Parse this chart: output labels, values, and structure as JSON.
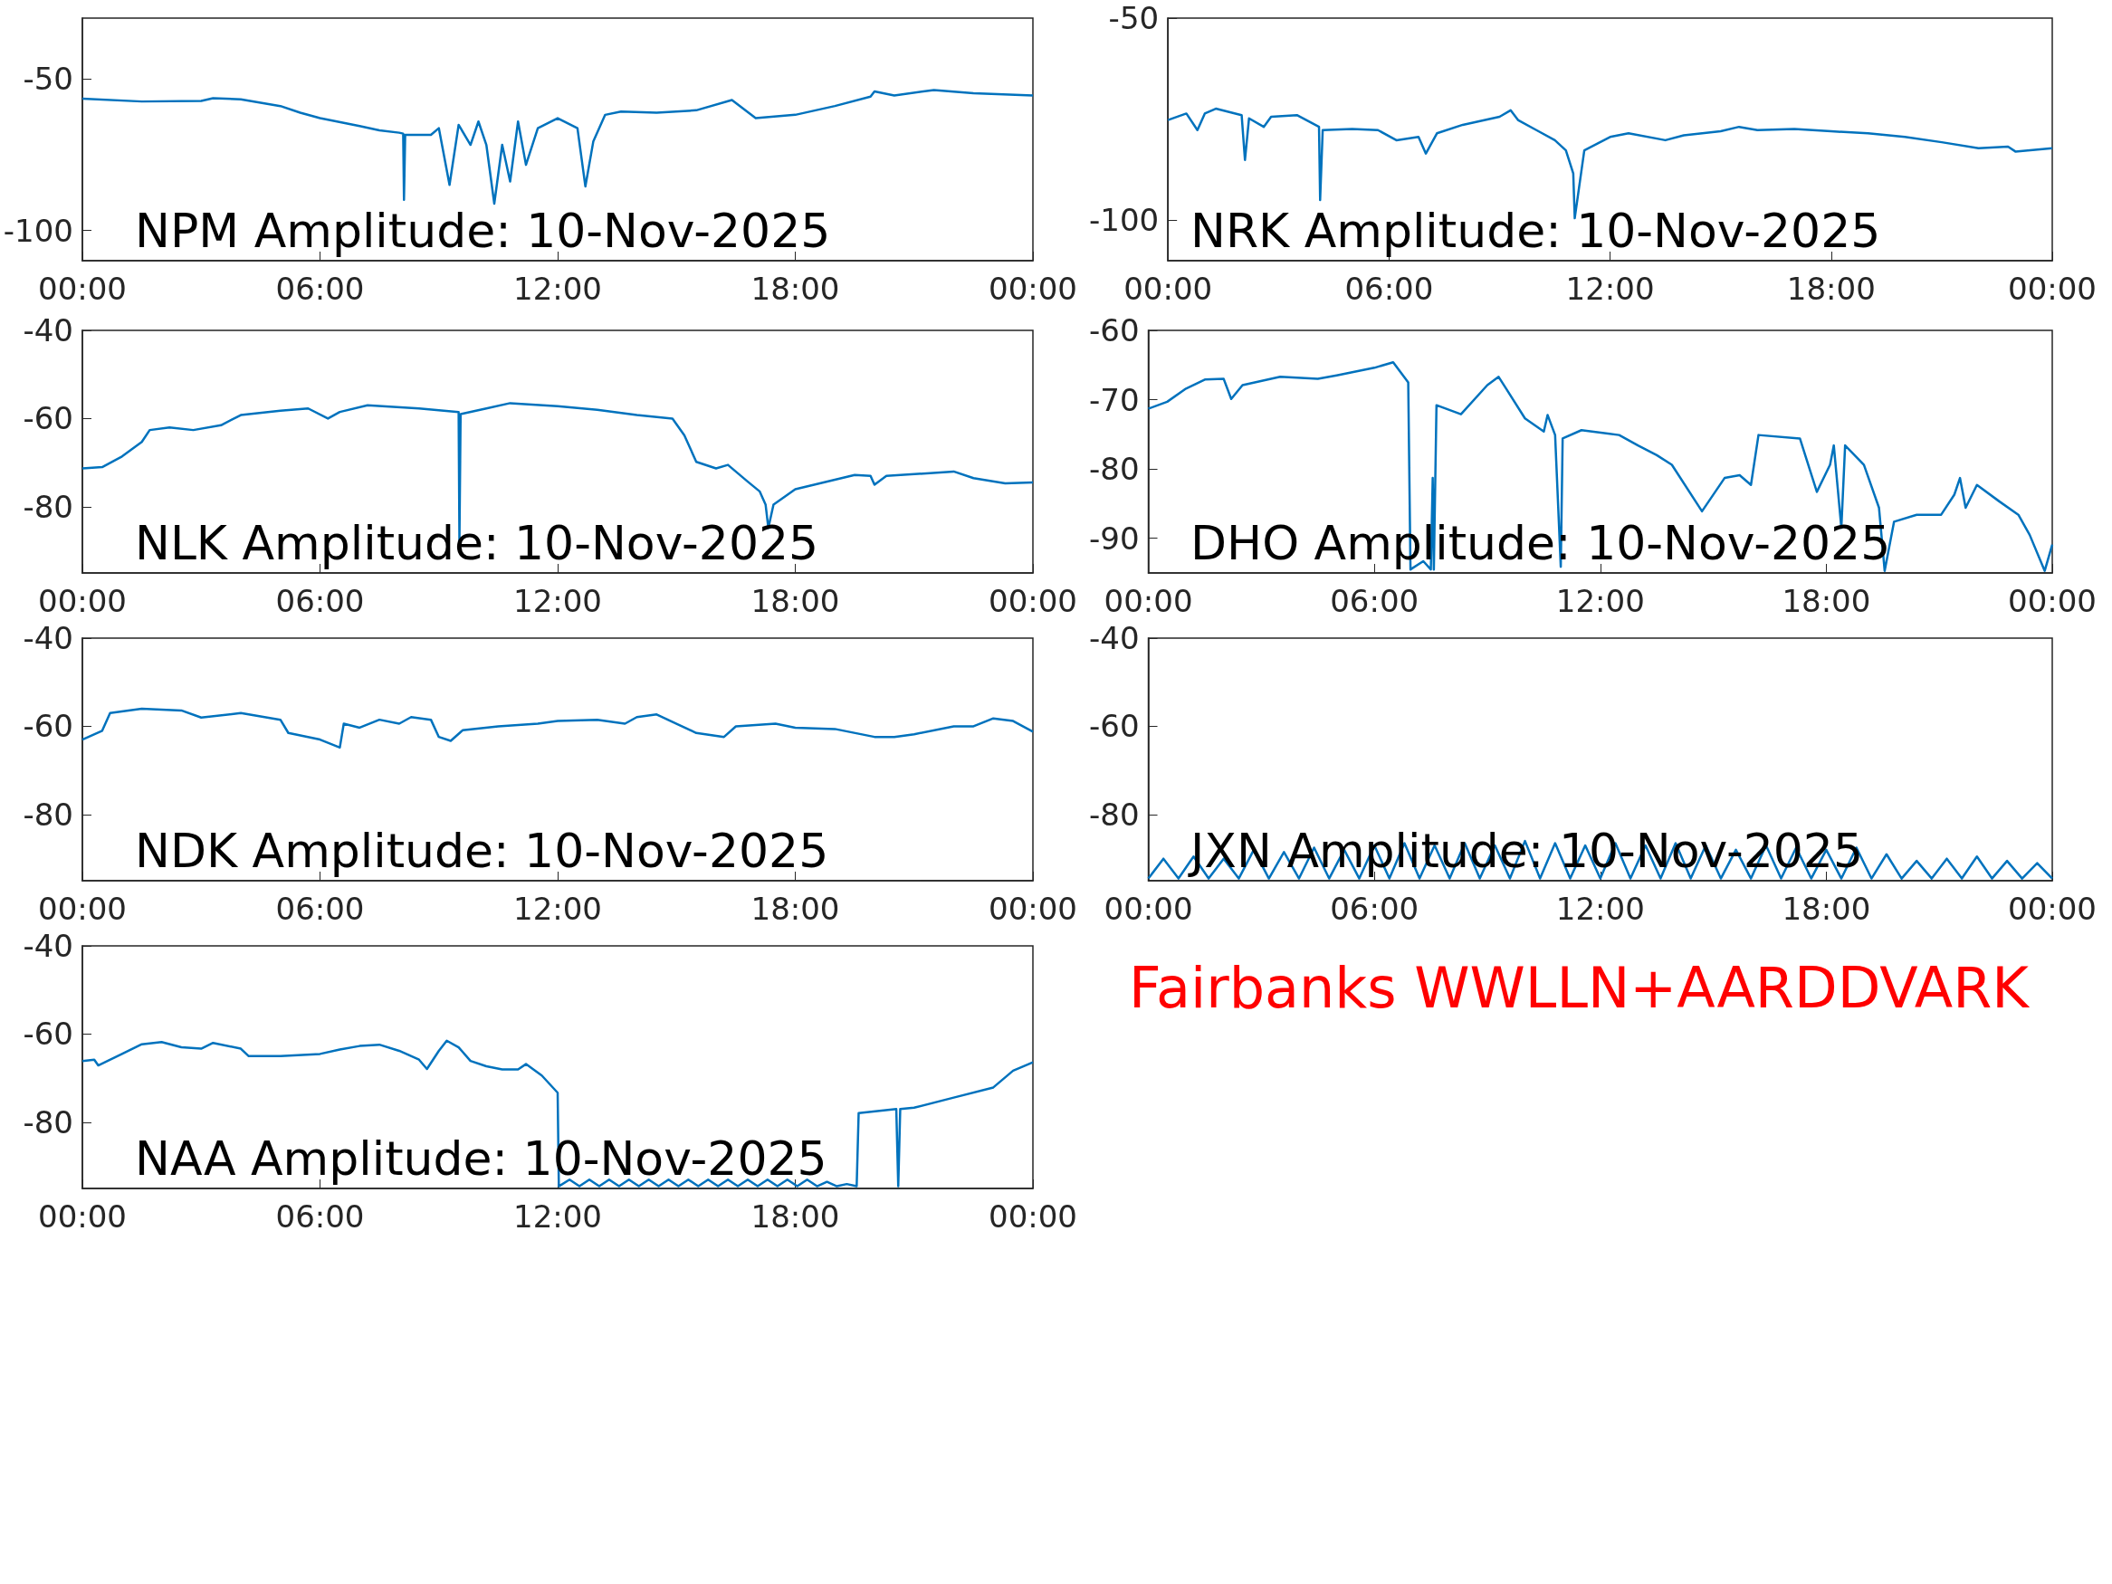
{
  "chart_data": [
    {
      "type": "line",
      "title": "NPM Amplitude: 10-Nov-2025",
      "color": "#0072bd",
      "grid": false,
      "xlim": [
        0,
        24
      ],
      "xticks": [
        {
          "value": 0,
          "label": "00:00"
        },
        {
          "value": 6,
          "label": "06:00"
        },
        {
          "value": 12,
          "label": "12:00"
        },
        {
          "value": 18,
          "label": "18:00"
        },
        {
          "value": 24,
          "label": "00:00"
        }
      ],
      "ylim": [
        -110,
        -30
      ],
      "yticks": [
        -100,
        -50
      ],
      "x": [
        0,
        1.5,
        3,
        3.3,
        4,
        5,
        5.5,
        6,
        7,
        7.5,
        8,
        8.1,
        8.12,
        8.15,
        8.8,
        9.0,
        9.27,
        9.5,
        9.8,
        10.0,
        10.2,
        10.4,
        10.6,
        10.8,
        11.0,
        11.2,
        11.5,
        12.0,
        12.5,
        12.7,
        12.9,
        13.2,
        13.6,
        14.5,
        15.5,
        16.4,
        17.0,
        18.0,
        19.0,
        19.9,
        20.0,
        20.5,
        21.5,
        22.5,
        24
      ],
      "values": [
        -56.6,
        -57.5,
        -57.3,
        -56.4,
        -56.8,
        -59.0,
        -61.2,
        -63.0,
        -65.6,
        -67.0,
        -67.8,
        -68.1,
        -89.9,
        -68.5,
        -68.5,
        -66.3,
        -85.0,
        -65.2,
        -71.8,
        -64.1,
        -71.8,
        -91.2,
        -71.8,
        -83.9,
        -64.1,
        -78.4,
        -66.3,
        -63.0,
        -66.3,
        -85.5,
        -70.7,
        -61.9,
        -60.8,
        -61.2,
        -60.4,
        -57.0,
        -63.0,
        -61.9,
        -59.0,
        -55.9,
        -54.2,
        -55.5,
        -53.7,
        -54.8,
        -55.5
      ]
    },
    {
      "type": "line",
      "title": "NRK Amplitude: 10-Nov-2025",
      "color": "#0072bd",
      "grid": false,
      "xlim": [
        0,
        24
      ],
      "xticks": [
        {
          "value": 0,
          "label": "00:00"
        },
        {
          "value": 6,
          "label": "06:00"
        },
        {
          "value": 12,
          "label": "12:00"
        },
        {
          "value": 18,
          "label": "18:00"
        },
        {
          "value": 24,
          "label": "00:00"
        }
      ],
      "ylim": [
        -110,
        -50
      ],
      "yticks": [
        -100,
        -50
      ],
      "x": [
        0,
        0.5,
        0.8,
        1,
        1.3,
        2,
        2.09,
        2.2,
        2.6,
        2.8,
        3.5,
        4.1,
        4.13,
        4.2,
        5,
        5.7,
        6.2,
        6.8,
        7,
        7.3,
        8,
        9,
        9.3,
        9.5,
        10,
        10.5,
        10.8,
        11,
        11.04,
        11.3,
        12,
        12.5,
        13.5,
        14,
        15,
        15.5,
        16,
        17,
        18,
        19,
        20,
        21,
        22,
        22.8,
        23,
        24
      ],
      "values": [
        -75.2,
        -73.6,
        -77.7,
        -73.6,
        -72.4,
        -74.0,
        -85.1,
        -74.8,
        -76.9,
        -74.4,
        -74.0,
        -76.9,
        -95.0,
        -77.7,
        -77.4,
        -77.7,
        -80.2,
        -79.4,
        -83.5,
        -78.5,
        -76.4,
        -74.4,
        -72.8,
        -75.2,
        -77.7,
        -80.2,
        -82.7,
        -88.4,
        -99.5,
        -82.7,
        -79.4,
        -78.5,
        -80.2,
        -79.0,
        -78.0,
        -76.9,
        -77.7,
        -77.4,
        -78.0,
        -78.5,
        -79.4,
        -80.7,
        -82.2,
        -81.8,
        -83.0,
        -82.2
      ]
    },
    {
      "type": "line",
      "title": "NLK Amplitude: 10-Nov-2025",
      "color": "#0072bd",
      "grid": false,
      "xlim": [
        0,
        24
      ],
      "xticks": [
        {
          "value": 0,
          "label": "00:00"
        },
        {
          "value": 6,
          "label": "06:00"
        },
        {
          "value": 12,
          "label": "12:00"
        },
        {
          "value": 18,
          "label": "18:00"
        },
        {
          "value": 24,
          "label": "00:00"
        }
      ],
      "ylim": [
        -95,
        -40
      ],
      "yticks": [
        -80,
        -60,
        -40
      ],
      "x": [
        0,
        0.5,
        1,
        1.5,
        1.7,
        2.2,
        2.8,
        3.5,
        4,
        5,
        5.7,
        6.2,
        6.5,
        7.2,
        8.5,
        9.5,
        9.52,
        9.55,
        10.2,
        10.8,
        12,
        13,
        14,
        14.9,
        15.2,
        15.5,
        16,
        16.3,
        16.8,
        17.1,
        17.25,
        17.32,
        17.45,
        18,
        19.5,
        19.9,
        20.0,
        20.3,
        22,
        22.5,
        23.3,
        24
      ],
      "values": [
        -71.3,
        -71.0,
        -68.6,
        -65.3,
        -62.6,
        -62.0,
        -62.6,
        -61.5,
        -59.2,
        -58.2,
        -57.7,
        -60.0,
        -58.5,
        -57.0,
        -57.7,
        -58.5,
        -87.8,
        -59.0,
        -57.7,
        -56.5,
        -57.2,
        -58.0,
        -59.2,
        -60.0,
        -63.8,
        -69.8,
        -71.3,
        -70.5,
        -74.3,
        -76.5,
        -79.5,
        -84.8,
        -79.5,
        -76.0,
        -72.8,
        -73.0,
        -75.0,
        -73.0,
        -72.0,
        -73.5,
        -74.7,
        -74.5
      ]
    },
    {
      "type": "line",
      "title": "DHO Amplitude: 10-Nov-2025",
      "color": "#0072bd",
      "grid": false,
      "xlim": [
        0,
        24
      ],
      "xticks": [
        {
          "value": 0,
          "label": "00:00"
        },
        {
          "value": 6,
          "label": "06:00"
        },
        {
          "value": 12,
          "label": "12:00"
        },
        {
          "value": 18,
          "label": "18:00"
        },
        {
          "value": 24,
          "label": "00:00"
        }
      ],
      "ylim": [
        -95,
        -60
      ],
      "yticks": [
        -90,
        -80,
        -70,
        -60
      ],
      "x": [
        0,
        0.5,
        1,
        1.5,
        2,
        2.2,
        2.5,
        3.5,
        4.5,
        5,
        6,
        6.5,
        6.9,
        6.96,
        7.3,
        7.5,
        7.55,
        7.58,
        7.65,
        8.3,
        9.0,
        9.3,
        9.5,
        10,
        10.5,
        10.6,
        10.8,
        10.95,
        11.0,
        11.5,
        12.5,
        13,
        13.5,
        13.9,
        14.7,
        15.3,
        15.7,
        16.0,
        16.2,
        17.3,
        17.75,
        18.1,
        18.2,
        18.4,
        18.5,
        19.0,
        19.4,
        19.55,
        19.8,
        20.4,
        21.05,
        21.4,
        21.55,
        21.7,
        22.0,
        22.6,
        23.1,
        23.4,
        23.8,
        24
      ],
      "values": [
        -71.3,
        -70.3,
        -68.4,
        -67.1,
        -67.0,
        -69.9,
        -67.9,
        -66.7,
        -67.0,
        -66.5,
        -65.4,
        -64.6,
        -67.5,
        -94.5,
        -93.3,
        -94.5,
        -81.3,
        -94.5,
        -70.8,
        -72.1,
        -67.9,
        -66.7,
        -68.4,
        -72.7,
        -74.6,
        -72.2,
        -75.1,
        -94.1,
        -75.6,
        -74.4,
        -75.1,
        -76.6,
        -78.0,
        -79.4,
        -86.1,
        -81.3,
        -80.9,
        -82.3,
        -75.1,
        -75.6,
        -83.3,
        -79.4,
        -76.6,
        -88.5,
        -76.6,
        -79.4,
        -85.6,
        -94.7,
        -87.6,
        -86.6,
        -86.6,
        -83.7,
        -81.3,
        -85.6,
        -82.3,
        -84.7,
        -86.6,
        -89.5,
        -94.7,
        -90.9
      ]
    },
    {
      "type": "line",
      "title": "NDK Amplitude: 10-Nov-2025",
      "color": "#0072bd",
      "grid": false,
      "xlim": [
        0,
        24
      ],
      "xticks": [
        {
          "value": 0,
          "label": "00:00"
        },
        {
          "value": 6,
          "label": "06:00"
        },
        {
          "value": 12,
          "label": "12:00"
        },
        {
          "value": 18,
          "label": "18:00"
        },
        {
          "value": 24,
          "label": "00:00"
        }
      ],
      "ylim": [
        -95,
        -40
      ],
      "yticks": [
        -80,
        -60,
        -40
      ],
      "x": [
        0,
        0.5,
        0.7,
        1.5,
        2.5,
        3,
        4,
        5,
        5.2,
        6,
        6.5,
        6.6,
        7,
        7.5,
        8,
        8.3,
        8.8,
        9,
        9.3,
        9.6,
        10.5,
        11.5,
        12,
        13,
        13.7,
        14,
        14.5,
        15,
        15.5,
        16.2,
        16.5,
        17.5,
        18,
        19,
        20,
        20.5,
        21,
        22,
        22.5,
        23,
        23.5,
        24
      ],
      "values": [
        -63.0,
        -61.0,
        -57.0,
        -56.0,
        -56.4,
        -58.0,
        -57.0,
        -58.5,
        -61.5,
        -63.0,
        -64.8,
        -59.4,
        -60.3,
        -58.5,
        -59.4,
        -57.9,
        -58.5,
        -62.4,
        -63.3,
        -60.9,
        -60.0,
        -59.4,
        -58.8,
        -58.5,
        -59.4,
        -57.9,
        -57.3,
        -59.4,
        -61.5,
        -62.4,
        -60.0,
        -59.4,
        -60.3,
        -60.6,
        -62.4,
        -62.4,
        -61.8,
        -60.0,
        -60.0,
        -58.2,
        -58.8,
        -61.2
      ]
    },
    {
      "type": "line",
      "title": "JXN Amplitude: 10-Nov-2025",
      "color": "#0072bd",
      "grid": false,
      "xlim": [
        0,
        24
      ],
      "xticks": [
        {
          "value": 0,
          "label": "00:00"
        },
        {
          "value": 6,
          "label": "06:00"
        },
        {
          "value": 12,
          "label": "12:00"
        },
        {
          "value": 18,
          "label": "18:00"
        },
        {
          "value": 24,
          "label": "00:00"
        }
      ],
      "ylim": [
        -95,
        -40
      ],
      "yticks": [
        -80,
        -60,
        -40
      ],
      "x": [
        0,
        0.4,
        0.8,
        1.2,
        1.6,
        2,
        2.4,
        2.8,
        3.2,
        3.6,
        4,
        4.4,
        4.8,
        5.2,
        5.6,
        6,
        6.4,
        6.8,
        7.2,
        7.6,
        8,
        8.4,
        8.8,
        9.2,
        9.6,
        10,
        10.4,
        10.8,
        11.2,
        11.6,
        12,
        12.4,
        12.8,
        13.2,
        13.6,
        14,
        14.4,
        14.8,
        15.2,
        15.6,
        16,
        16.4,
        16.8,
        17.2,
        17.6,
        18,
        18.4,
        18.8,
        19.2,
        19.6,
        20,
        20.4,
        20.8,
        21.2,
        21.6,
        22,
        22.4,
        22.8,
        23.2,
        23.6,
        24
      ],
      "values": [
        -94.5,
        -90,
        -94.5,
        -89.5,
        -94.5,
        -90,
        -94.5,
        -88,
        -94.5,
        -88.5,
        -94.5,
        -87.5,
        -94.5,
        -88,
        -94.5,
        -87,
        -94.5,
        -86.5,
        -94.5,
        -87,
        -94.5,
        -86.5,
        -94.5,
        -87,
        -94.5,
        -86,
        -94.5,
        -86.5,
        -94.5,
        -87,
        -94.5,
        -86.5,
        -94.5,
        -87,
        -94.5,
        -86.5,
        -94.5,
        -87,
        -94.5,
        -88,
        -94.5,
        -87,
        -94.5,
        -87.5,
        -94.5,
        -88,
        -94.5,
        -87.5,
        -94.5,
        -89,
        -94.5,
        -90.5,
        -94.5,
        -90,
        -94.5,
        -89.5,
        -94.5,
        -90.5,
        -94.5,
        -91,
        -94.5
      ]
    },
    {
      "type": "line",
      "title": "NAA Amplitude: 10-Nov-2025",
      "color": "#0072bd",
      "grid": false,
      "xlim": [
        0,
        24
      ],
      "xticks": [
        {
          "value": 0,
          "label": "00:00"
        },
        {
          "value": 6,
          "label": "06:00"
        },
        {
          "value": 12,
          "label": "12:00"
        },
        {
          "value": 18,
          "label": "18:00"
        },
        {
          "value": 24,
          "label": "00:00"
        }
      ],
      "ylim": [
        -95,
        -40
      ],
      "yticks": [
        -80,
        -60,
        -40
      ],
      "annotations": [
        "Fairbanks WWLLN+AARDDVARK"
      ],
      "x": [
        0,
        0.3,
        0.4,
        1,
        1.5,
        2,
        2.5,
        3,
        3.3,
        4,
        4.2,
        5,
        6,
        6.5,
        7,
        7.5,
        8,
        8.5,
        8.7,
        9,
        9.2,
        9.5,
        9.8,
        10.2,
        10.6,
        11,
        11.2,
        11.6,
        12,
        12.03,
        12.3,
        12.55,
        12.8,
        13.05,
        13.3,
        13.55,
        13.8,
        14.05,
        14.3,
        14.55,
        14.8,
        15.05,
        15.3,
        15.55,
        15.8,
        16.05,
        16.3,
        16.55,
        16.8,
        17.05,
        17.3,
        17.55,
        17.8,
        18.05,
        18.3,
        18.55,
        18.8,
        19.05,
        19.3,
        19.55,
        19.6,
        20.55,
        20.6,
        20.65,
        21,
        22,
        23,
        23.5,
        24
      ],
      "values": [
        -66.1,
        -65.8,
        -67.1,
        -64.5,
        -62.3,
        -61.8,
        -63.0,
        -63.3,
        -62.0,
        -63.3,
        -65.0,
        -65.0,
        -64.5,
        -63.5,
        -62.7,
        -62.4,
        -63.8,
        -65.8,
        -67.9,
        -63.8,
        -61.5,
        -63.0,
        -66.1,
        -67.3,
        -68.0,
        -68.0,
        -66.8,
        -69.4,
        -73.3,
        -94.5,
        -93,
        -94.5,
        -93,
        -94.5,
        -93,
        -94.5,
        -93,
        -94.5,
        -93,
        -94.5,
        -93,
        -94.5,
        -93,
        -94.5,
        -93,
        -94.5,
        -93,
        -94.5,
        -93,
        -94.5,
        -93,
        -94.5,
        -93,
        -94.5,
        -93,
        -94.5,
        -93.5,
        -94.5,
        -94,
        -94.5,
        -77.9,
        -77.0,
        -94.5,
        -77.0,
        -76.7,
        -74.4,
        -72.1,
        -68.3,
        -66.4
      ]
    }
  ]
}
